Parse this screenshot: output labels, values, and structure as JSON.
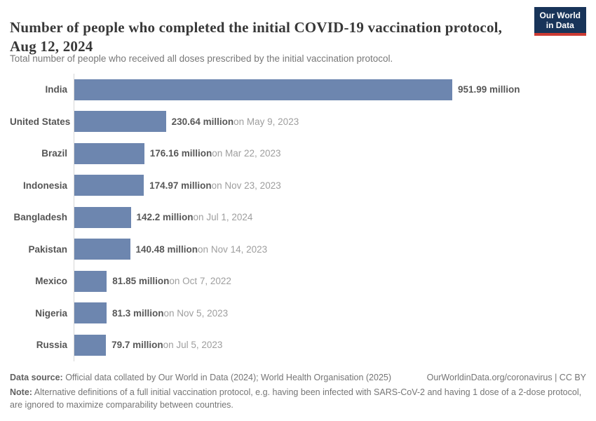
{
  "header": {
    "title": "Number of people who completed the initial COVID-19 vaccination protocol, Aug 12, 2024",
    "subtitle": "Total number of people who received all doses prescribed by the initial vaccination protocol.",
    "logo": {
      "line1": "Our World",
      "line2": "in Data"
    }
  },
  "chart_data": {
    "type": "bar",
    "orientation": "horizontal",
    "title": "Number of people who completed the initial COVID-19 vaccination protocol, Aug 12, 2024",
    "unit": "million people",
    "xlim": [
      0,
      951.99
    ],
    "grid": false,
    "legend": false,
    "bar_color": "#6d86af",
    "categories": [
      "India",
      "United States",
      "Brazil",
      "Indonesia",
      "Bangladesh",
      "Pakistan",
      "Mexico",
      "Nigeria",
      "Russia"
    ],
    "values": [
      951.99,
      230.64,
      176.16,
      174.97,
      142.2,
      140.48,
      81.85,
      81.3,
      79.7
    ],
    "value_labels": [
      "951.99 million",
      "230.64 million",
      "176.16 million",
      "174.97 million",
      "142.2 million",
      "140.48 million",
      "81.85 million",
      "81.3 million",
      "79.7 million"
    ],
    "date_labels": [
      "",
      "on May 9, 2023",
      "on Mar 22, 2023",
      "on Nov 23, 2023",
      "on Jul 1, 2024",
      "on Nov 14, 2023",
      "on Oct 7, 2022",
      "on Nov 5, 2023",
      "on Jul 5, 2023"
    ]
  },
  "footer": {
    "source_label": "Data source:",
    "source_text": " Official data collated by Our World in Data (2024); World Health Organisation (2025)",
    "link_text": "OurWorldinData.org/coronavirus | CC BY",
    "note_label": "Note:",
    "note_text": " Alternative definitions of a full initial vaccination protocol, e.g. having been infected with SARS-CoV-2 and having 1 dose of a 2-dose protocol, are ignored to maximize comparability between countries."
  },
  "colors": {
    "bar": "#6d86af",
    "title_text": "#383838",
    "subtitle_text": "#787878",
    "value_text": "#585858",
    "date_text": "#9e9e9e",
    "logo_bg": "#183459",
    "logo_accent": "#cc3b33",
    "axis_line": "#d6d6d6"
  }
}
